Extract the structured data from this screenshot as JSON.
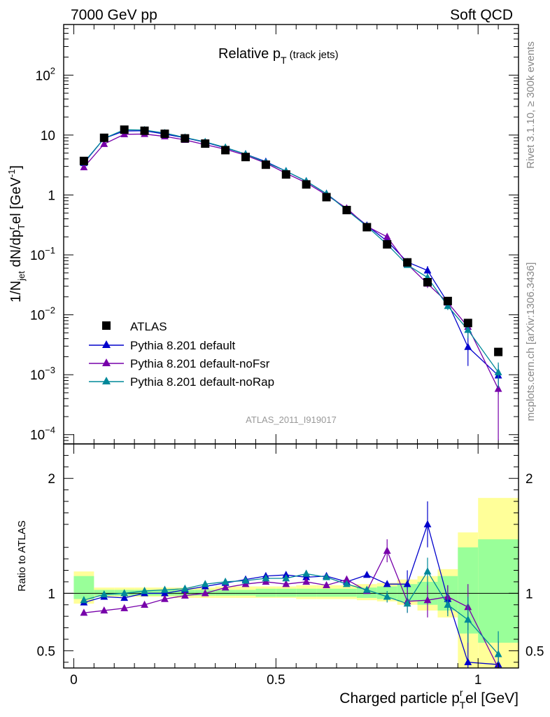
{
  "header": {
    "energy_label": "7000 GeV pp",
    "category_label": "Soft QCD"
  },
  "side_labels": {
    "rivet": "Rivet 3.1.10, ≥ 300k events",
    "mcplots": "mcplots.cern.ch [arXiv:1306.3436]"
  },
  "chart_data": {
    "type": "line",
    "title": {
      "main": "Relative p",
      "sub": "T",
      "suffix": " (track jets)"
    },
    "analysis_id": "ATLAS_2011_I919017",
    "xlabel": "Charged particle p",
    "xlabel_sup": "r",
    "xlabel_sub": "T",
    "xlabel_suffix": "el [GeV]",
    "ylabel_parts": [
      "1/N",
      "jet",
      " dN/dp",
      "r",
      "T",
      "el [GeV",
      "-1",
      "]"
    ],
    "ratio_ylabel": "Ratio to ATLAS",
    "xlim": [
      -0.025,
      1.1
    ],
    "ylim_main": [
      7e-05,
      700
    ],
    "yscale_main": "log",
    "ylim_ratio": [
      0.35,
      2.3
    ],
    "legend_position": "bottom-left",
    "x_ticks": [
      {
        "v": 0,
        "label": "0"
      },
      {
        "v": 0.5,
        "label": "0.5"
      },
      {
        "v": 1,
        "label": "1"
      }
    ],
    "main_y_ticks": [
      {
        "v": 100,
        "base": "10",
        "exp": "2"
      },
      {
        "v": 10,
        "base": "10",
        "exp": ""
      },
      {
        "v": 1,
        "base": "1",
        "exp": ""
      },
      {
        "v": 0.1,
        "base": "10",
        "exp": "−1"
      },
      {
        "v": 0.01,
        "base": "10",
        "exp": "−2"
      },
      {
        "v": 0.001,
        "base": "10",
        "exp": "−3"
      },
      {
        "v": 0.0001,
        "base": "10",
        "exp": "−4"
      }
    ],
    "ratio_y_ticks": [
      {
        "v": 2,
        "label": "2"
      },
      {
        "v": 1,
        "label": "1"
      },
      {
        "v": 0.5,
        "label": "0.5"
      }
    ],
    "x": [
      0.025,
      0.075,
      0.125,
      0.175,
      0.225,
      0.275,
      0.325,
      0.375,
      0.425,
      0.475,
      0.525,
      0.575,
      0.625,
      0.675,
      0.725,
      0.775,
      0.825,
      0.875,
      0.925,
      0.975,
      1.05
    ],
    "bin_edges": [
      0,
      0.05,
      0.1,
      0.15,
      0.2,
      0.25,
      0.3,
      0.35,
      0.4,
      0.45,
      0.5,
      0.55,
      0.6,
      0.65,
      0.7,
      0.75,
      0.8,
      0.85,
      0.9,
      0.95,
      1.0,
      1.1
    ],
    "data": {
      "name": "ATLAS",
      "values": [
        3.7,
        9.0,
        12.3,
        11.8,
        10.5,
        8.8,
        7.2,
        5.6,
        4.3,
        3.2,
        2.2,
        1.5,
        0.92,
        0.56,
        0.29,
        0.15,
        0.075,
        0.035,
        0.017,
        0.0073,
        0.0024
      ],
      "band_green": [
        [
          0.95,
          1.15
        ],
        [
          0.98,
          1.03
        ],
        [
          0.98,
          1.03
        ],
        [
          0.98,
          1.03
        ],
        [
          0.98,
          1.03
        ],
        [
          0.98,
          1.03
        ],
        [
          0.98,
          1.03
        ],
        [
          0.98,
          1.03
        ],
        [
          0.98,
          1.03
        ],
        [
          0.97,
          1.04
        ],
        [
          0.97,
          1.04
        ],
        [
          0.97,
          1.04
        ],
        [
          0.97,
          1.04
        ],
        [
          0.97,
          1.04
        ],
        [
          0.96,
          1.05
        ],
        [
          0.95,
          1.06
        ],
        [
          0.93,
          1.08
        ],
        [
          0.9,
          1.1
        ],
        [
          0.85,
          1.15
        ],
        [
          0.65,
          1.4
        ],
        [
          0.57,
          1.47
        ]
      ],
      "band_yellow": [
        [
          0.91,
          1.19
        ],
        [
          0.97,
          1.05
        ],
        [
          0.97,
          1.05
        ],
        [
          0.97,
          1.05
        ],
        [
          0.97,
          1.05
        ],
        [
          0.96,
          1.05
        ],
        [
          0.96,
          1.05
        ],
        [
          0.96,
          1.06
        ],
        [
          0.96,
          1.06
        ],
        [
          0.96,
          1.06
        ],
        [
          0.96,
          1.06
        ],
        [
          0.95,
          1.07
        ],
        [
          0.95,
          1.07
        ],
        [
          0.95,
          1.07
        ],
        [
          0.94,
          1.08
        ],
        [
          0.93,
          1.09
        ],
        [
          0.9,
          1.12
        ],
        [
          0.85,
          1.15
        ],
        [
          0.79,
          1.21
        ],
        [
          0.35,
          1.53
        ],
        [
          0.35,
          1.83
        ]
      ]
    },
    "series": [
      {
        "name": "Pythia 8.201 default",
        "color": "#0000cc",
        "values": [
          3.4,
          8.8,
          11.7,
          11.8,
          10.4,
          9.0,
          7.6,
          6.1,
          4.8,
          3.6,
          2.5,
          1.7,
          1.05,
          0.58,
          0.31,
          0.17,
          0.076,
          0.055,
          0.016,
          0.0029,
          0.00097
        ],
        "err": [
          0,
          0,
          0,
          0,
          0,
          0,
          0,
          0,
          0,
          0,
          0,
          0,
          0,
          0,
          0,
          0,
          0.005,
          0.01,
          0.002,
          0.0015,
          0.0005
        ],
        "ratio": [
          0.92,
          0.97,
          0.96,
          1.0,
          1.0,
          1.03,
          1.06,
          1.09,
          1.12,
          1.15,
          1.16,
          1.14,
          1.15,
          1.1,
          1.16,
          1.08,
          1.08,
          1.6,
          0.95,
          0.4,
          0.38
        ],
        "ratio_err": [
          0,
          0,
          0,
          0,
          0,
          0,
          0,
          0,
          0,
          0,
          0,
          0,
          0,
          0,
          0,
          0,
          0.12,
          0.2,
          0.12,
          0.25,
          0.2
        ]
      },
      {
        "name": "Pythia 8.201 default-noFsr",
        "color": "#7700aa",
        "values": [
          2.9,
          7.1,
          10.3,
          10.4,
          9.5,
          8.3,
          6.9,
          5.8,
          4.6,
          3.4,
          2.3,
          1.6,
          1.0,
          0.6,
          0.3,
          0.2,
          0.07,
          0.033,
          0.016,
          0.0063,
          0.00058
        ],
        "err": [
          0,
          0,
          0,
          0,
          0,
          0,
          0,
          0,
          0,
          0,
          0,
          0,
          0,
          0,
          0,
          0,
          0.004,
          0.005,
          0.002,
          0.002,
          0.0005
        ],
        "ratio": [
          0.83,
          0.85,
          0.87,
          0.9,
          0.95,
          0.98,
          1.0,
          1.05,
          1.08,
          1.1,
          1.08,
          1.1,
          1.07,
          1.12,
          1.02,
          1.37,
          0.93,
          0.94,
          0.97,
          0.88,
          0.25
        ],
        "ratio_err": [
          0,
          0,
          0,
          0,
          0,
          0,
          0,
          0,
          0,
          0,
          0,
          0,
          0,
          0,
          0,
          0.1,
          0.1,
          0.15,
          0.1,
          0.2,
          0.2
        ]
      },
      {
        "name": "Pythia 8.201 default-noRap",
        "color": "#008899",
        "values": [
          3.5,
          8.8,
          12.3,
          12.1,
          10.8,
          9.1,
          7.7,
          6.2,
          4.8,
          3.5,
          2.5,
          1.7,
          1.05,
          0.56,
          0.3,
          0.15,
          0.068,
          0.042,
          0.014,
          0.0056,
          0.0011
        ],
        "err": [
          0,
          0,
          0,
          0,
          0,
          0,
          0,
          0,
          0,
          0,
          0,
          0,
          0,
          0,
          0,
          0,
          0.004,
          0.006,
          0.002,
          0.0015,
          0.0005
        ],
        "ratio": [
          0.94,
          0.99,
          1.0,
          1.02,
          1.03,
          1.04,
          1.08,
          1.1,
          1.11,
          1.13,
          1.13,
          1.17,
          1.14,
          1.08,
          1.03,
          0.97,
          0.91,
          1.19,
          0.9,
          0.77,
          0.47
        ],
        "ratio_err": [
          0,
          0,
          0,
          0,
          0,
          0,
          0,
          0,
          0,
          0,
          0,
          0,
          0,
          0,
          0,
          0.05,
          0.08,
          0.12,
          0.1,
          0.2,
          0.2
        ]
      }
    ]
  }
}
